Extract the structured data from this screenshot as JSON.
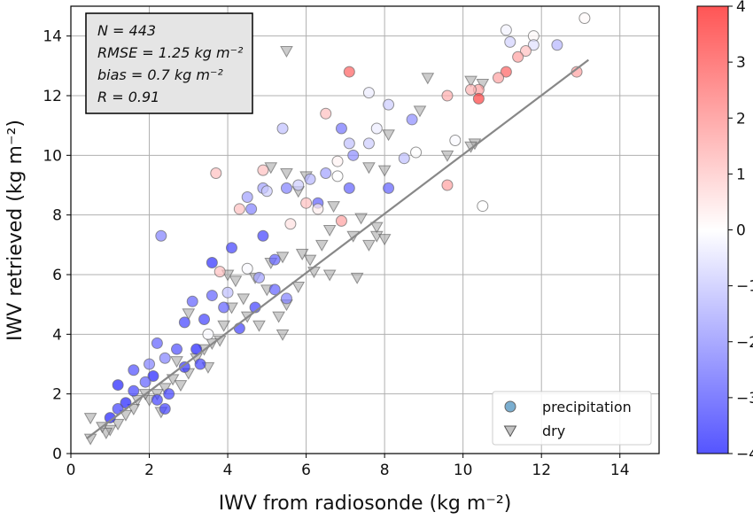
{
  "chart_data": {
    "type": "scatter",
    "x_label": "IWV from radiosonde (kg m⁻²)",
    "y_label": "IWV retrieved (kg m⁻²)",
    "xlim": [
      0,
      15
    ],
    "ylim": [
      0,
      15
    ],
    "xticks": [
      0,
      2,
      4,
      6,
      8,
      10,
      12,
      14
    ],
    "yticks": [
      0,
      2,
      4,
      6,
      8,
      10,
      12,
      14
    ],
    "grid": true,
    "stats": [
      "N = 443",
      "RMSE = 1.25 kg m⁻²",
      "bias = 0.7 kg m⁻²",
      "R = 0.91"
    ],
    "legend_position": "lower right",
    "colormap": "bwr",
    "clim": [
      -4,
      4
    ],
    "cticks": [
      {
        "value": -4,
        "label": "−4"
      },
      {
        "value": -3,
        "label": "−3"
      },
      {
        "value": -2,
        "label": "−2"
      },
      {
        "value": -1,
        "label": "−1"
      },
      0,
      1,
      2,
      3,
      4
    ],
    "fit_line": {
      "color": "#888888",
      "x": [
        0.4,
        13.2
      ],
      "y": [
        0.5,
        13.2
      ]
    },
    "series": [
      {
        "name": "precipitation",
        "marker": "circle",
        "color": "#7aaed0",
        "x": [
          13.1,
          11.1,
          11.8,
          11.2,
          11.8,
          12.4,
          11.6,
          11.4,
          12.9,
          11.1,
          10.9,
          10.4,
          10.2,
          10.4,
          9.6,
          7.1,
          7.6,
          8.1,
          8.7,
          6.5,
          7.8,
          5.4,
          6.9,
          7.6,
          7.1,
          7.2,
          6.8,
          9.8,
          8.8,
          8.5,
          6.5,
          6.1,
          5.8,
          4.9,
          3.7,
          6.8,
          7.1,
          8.1,
          5.5,
          4.9,
          5.0,
          6.3,
          4.5,
          4.3,
          4.6,
          6.0,
          6.3,
          5.6,
          6.9,
          9.6,
          10.5,
          2.3,
          4.9,
          4.1,
          5.2,
          3.6,
          4.5,
          3.8,
          5.2,
          4.8,
          3.6,
          3.1,
          3.9,
          5.5,
          4.7,
          3.4,
          3.5,
          2.9,
          2.2,
          2.7,
          2.4,
          3.3,
          2.0,
          1.6,
          2.1,
          1.2,
          1.6,
          2.5,
          1.9,
          2.2,
          1.4,
          2.4,
          1.0,
          1.2,
          2.9,
          3.2,
          4.3,
          4.0
        ],
        "y": [
          14.6,
          14.2,
          14.0,
          13.8,
          13.7,
          13.7,
          13.5,
          13.3,
          12.8,
          12.8,
          12.6,
          12.2,
          12.2,
          11.9,
          12.0,
          12.8,
          12.1,
          11.7,
          11.2,
          11.4,
          10.9,
          10.9,
          10.9,
          10.4,
          10.4,
          10.0,
          9.8,
          10.5,
          10.1,
          9.9,
          9.4,
          9.2,
          9.0,
          9.5,
          9.4,
          9.3,
          8.9,
          8.9,
          8.9,
          8.9,
          8.8,
          8.4,
          8.6,
          8.2,
          8.2,
          8.4,
          8.2,
          7.7,
          7.8,
          9.0,
          8.3,
          7.3,
          7.3,
          6.9,
          6.5,
          6.4,
          6.2,
          6.1,
          5.5,
          5.9,
          5.3,
          5.1,
          4.9,
          5.2,
          4.9,
          4.5,
          4.0,
          4.4,
          3.7,
          3.5,
          3.2,
          3.0,
          3.0,
          2.8,
          2.6,
          2.3,
          2.1,
          2.0,
          2.4,
          1.8,
          1.7,
          1.5,
          1.2,
          1.5,
          2.9,
          3.5,
          4.2,
          5.4
        ],
        "c": [
          0.1,
          -0.2,
          0.1,
          -0.7,
          -0.5,
          -1.2,
          1.0,
          1.5,
          1.5,
          2.5,
          1.5,
          1.5,
          1.2,
          3.0,
          1.3,
          2.5,
          -0.3,
          -0.8,
          -1.8,
          1.0,
          -0.3,
          -1.0,
          -2.2,
          -0.8,
          -1.0,
          -1.8,
          0.2,
          -0.1,
          0.0,
          -1.0,
          -1.5,
          -1.2,
          -0.8,
          1.0,
          1.0,
          0.0,
          -2.5,
          -2.5,
          -2.0,
          -1.5,
          -0.8,
          -2.5,
          -1.5,
          1.0,
          -2.0,
          1.0,
          0.3,
          0.5,
          1.5,
          1.5,
          0.0,
          -2.0,
          -3.0,
          -3.0,
          -2.5,
          -3.3,
          -0.1,
          1.0,
          -2.5,
          -1.5,
          -2.5,
          -2.5,
          -2.5,
          -2.0,
          -3.0,
          -3.0,
          -0.1,
          -3.0,
          -2.5,
          -2.8,
          -2.0,
          -3.0,
          -2.0,
          -2.8,
          -3.5,
          -3.5,
          -3.0,
          -3.0,
          -2.5,
          -3.0,
          -3.5,
          -3.0,
          -3.5,
          -3.0,
          -3.2,
          -3.5,
          -3.0,
          -1.0
        ]
      },
      {
        "name": "dry",
        "marker": "triangle",
        "color": "#999999",
        "x": [
          5.5,
          9.1,
          10.5,
          10.2,
          8.9,
          8.1,
          7.6,
          8.0,
          5.1,
          5.5,
          6.0,
          5.8,
          6.7,
          7.4,
          7.8,
          6.6,
          7.2,
          7.8,
          8.0,
          7.6,
          6.4,
          5.9,
          6.1,
          5.4,
          5.1,
          6.2,
          6.6,
          7.3,
          5.8,
          4.7,
          4.2,
          5.0,
          5.5,
          5.3,
          5.4,
          4.5,
          4.8,
          3.9,
          3.6,
          3.4,
          4.1,
          3.2,
          3.0,
          2.6,
          2.4,
          2.2,
          2.0,
          1.9,
          1.6,
          2.3,
          1.4,
          1.2,
          1.0,
          0.9,
          0.5,
          0.5,
          0.8,
          1.7,
          2.7,
          3.5,
          2.8,
          3.8,
          4.4,
          4.0,
          3.0,
          10.3,
          10.2,
          9.6
        ],
        "y": [
          13.5,
          12.6,
          12.4,
          12.5,
          11.5,
          10.7,
          9.6,
          9.5,
          9.6,
          9.4,
          9.3,
          8.8,
          8.3,
          7.9,
          7.6,
          7.5,
          7.3,
          7.3,
          7.2,
          7.0,
          7.0,
          6.7,
          6.5,
          6.6,
          6.4,
          6.1,
          6.0,
          5.9,
          5.6,
          5.9,
          5.8,
          5.5,
          5.0,
          4.6,
          4.0,
          4.6,
          4.3,
          4.3,
          3.7,
          3.5,
          4.9,
          3.2,
          2.7,
          2.5,
          2.2,
          2.0,
          1.8,
          2.0,
          1.5,
          1.4,
          1.3,
          1.0,
          0.8,
          0.7,
          0.5,
          1.2,
          0.9,
          1.8,
          3.1,
          2.9,
          2.3,
          3.8,
          5.2,
          6.0,
          4.7,
          10.4,
          10.3,
          10.0
        ]
      }
    ]
  }
}
